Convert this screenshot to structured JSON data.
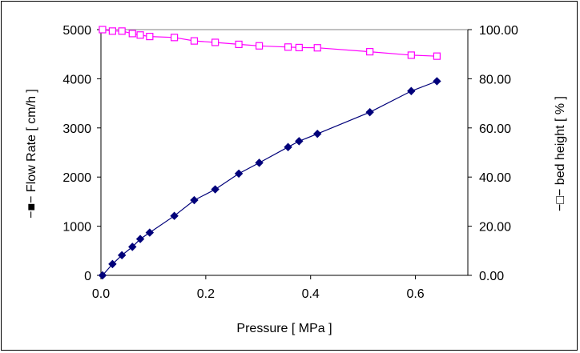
{
  "chart_data": {
    "type": "scatter",
    "title": "",
    "xlabel": "Pressure [ MPa ]",
    "ylabel_left": "−■− Flow Rate [ cm/h ]",
    "ylabel_right": "−□− bed height [ % ]",
    "xlim": [
      0,
      0.7
    ],
    "ylim_left": [
      0,
      5000
    ],
    "ylim_right": [
      0,
      100
    ],
    "x_ticks": [
      "0.0",
      "0.2",
      "0.4",
      "0.6"
    ],
    "x_tick_values": [
      0,
      0.2,
      0.4,
      0.6
    ],
    "y_left_ticks": [
      "0",
      "1000",
      "2000",
      "3000",
      "4000",
      "5000"
    ],
    "y_left_tick_values": [
      0,
      1000,
      2000,
      3000,
      4000,
      5000
    ],
    "y_right_ticks": [
      "0.00",
      "20.00",
      "40.00",
      "60.00",
      "80.00",
      "100.00"
    ],
    "y_right_tick_values": [
      0,
      20,
      40,
      60,
      80,
      100
    ],
    "grid": false,
    "legend": "none",
    "series": [
      {
        "axis": "left",
        "marker": "filled-diamond",
        "color": "#00007a",
        "x": [
          0.003,
          0.022,
          0.04,
          0.06,
          0.075,
          0.093,
          0.14,
          0.178,
          0.218,
          0.263,
          0.302,
          0.357,
          0.378,
          0.413,
          0.513,
          0.592,
          0.641
        ],
        "y": [
          0,
          230,
          410,
          580,
          740,
          870,
          1210,
          1530,
          1750,
          2070,
          2290,
          2610,
          2730,
          2880,
          3320,
          3750,
          3950
        ]
      },
      {
        "axis": "right",
        "marker": "open-square",
        "color": "#ff00ff",
        "x": [
          0.003,
          0.022,
          0.04,
          0.06,
          0.075,
          0.093,
          0.14,
          0.178,
          0.218,
          0.263,
          0.302,
          0.357,
          0.378,
          0.413,
          0.513,
          0.592,
          0.641
        ],
        "y": [
          100.0,
          99.4,
          99.4,
          98.4,
          97.8,
          97.2,
          96.8,
          95.4,
          94.8,
          94.0,
          93.4,
          92.9,
          92.7,
          92.6,
          91.0,
          89.6,
          89.2
        ]
      }
    ]
  }
}
